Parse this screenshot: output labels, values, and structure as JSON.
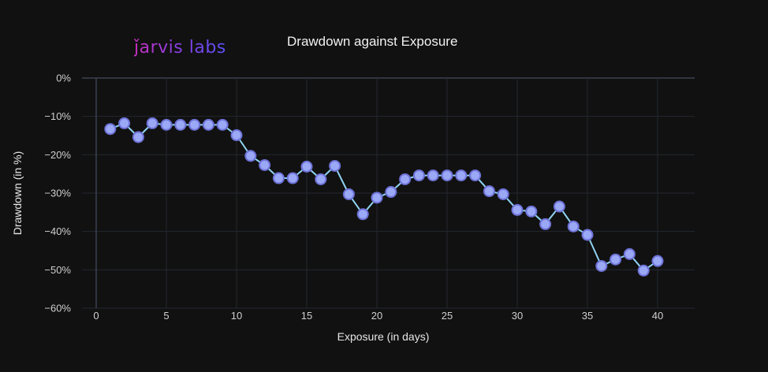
{
  "brand": {
    "logo_text": "ǰarvis labs"
  },
  "chart_data": {
    "type": "line",
    "title": "Drawdown against Exposure",
    "xlabel": "Exposure (in days)",
    "ylabel": "Drawdown (in %)",
    "xlim": [
      0,
      40
    ],
    "ylim": [
      -60,
      0
    ],
    "x_ticks": [
      0,
      5,
      10,
      15,
      20,
      25,
      30,
      35,
      40
    ],
    "y_ticks": [
      0,
      -10,
      -20,
      -30,
      -40,
      -50,
      -60
    ],
    "y_tick_labels": [
      "0%",
      "−10%",
      "−20%",
      "−30%",
      "−40%",
      "−50%",
      "−60%"
    ],
    "grid": true,
    "x": [
      1,
      2,
      3,
      4,
      5,
      6,
      7,
      8,
      9,
      10,
      11,
      12,
      13,
      14,
      15,
      16,
      17,
      18,
      19,
      20,
      21,
      22,
      23,
      24,
      25,
      26,
      27,
      28,
      29,
      30,
      31,
      32,
      33,
      34,
      35,
      36,
      37,
      38,
      39,
      40
    ],
    "y": [
      -13.3,
      -11.8,
      -15.4,
      -11.8,
      -12.2,
      -12.2,
      -12.2,
      -12.2,
      -12.2,
      -14.9,
      -20.3,
      -22.7,
      -26.1,
      -26.1,
      -23.1,
      -26.4,
      -22.9,
      -30.3,
      -35.5,
      -31.2,
      -29.7,
      -26.4,
      -25.4,
      -25.4,
      -25.4,
      -25.4,
      -25.4,
      -29.5,
      -30.3,
      -34.4,
      -34.8,
      -38.1,
      -33.5,
      -38.7,
      -40.9,
      -49.0,
      -47.3,
      -45.9,
      -50.2,
      -47.7
    ],
    "line_color": "#8fd3f0",
    "marker_fill": "#9aa8f5",
    "marker_edge": "#6f72d8"
  }
}
